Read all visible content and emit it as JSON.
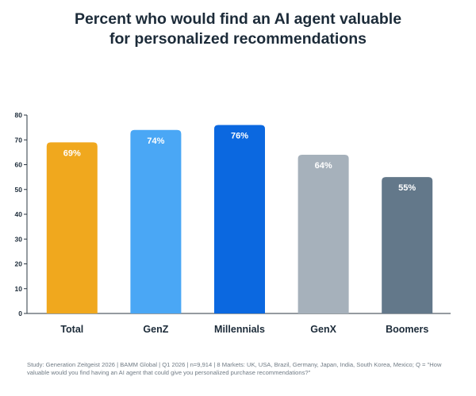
{
  "chart_data": {
    "type": "bar",
    "title_lines": [
      "Percent who would find an AI agent valuable",
      "for personalized recommendations"
    ],
    "categories": [
      "Total",
      "GenZ",
      "Millennials",
      "GenX",
      "Boomers"
    ],
    "values": [
      69,
      74,
      76,
      64,
      55
    ],
    "data_labels": [
      "69%",
      "74%",
      "76%",
      "64%",
      "55%"
    ],
    "bar_colors": [
      "#f0a81e",
      "#4aa7f5",
      "#0b68e0",
      "#a6b1bb",
      "#63788a"
    ],
    "ylim": [
      0,
      80
    ],
    "yticks": [
      0,
      10,
      20,
      30,
      40,
      50,
      60,
      70,
      80
    ],
    "grid": false,
    "xlabel": "",
    "ylabel": ""
  },
  "footnote": "Study: Generation Zeitgeist 2026 | BAMM Global | Q1 2026 | n=9,914 | 8 Markets: UK, USA, Brazil, Germany, Japan, India, South Korea, Mexico; Q = \"How valuable would you find having an AI agent that could give you personalized purchase recommendations?\""
}
